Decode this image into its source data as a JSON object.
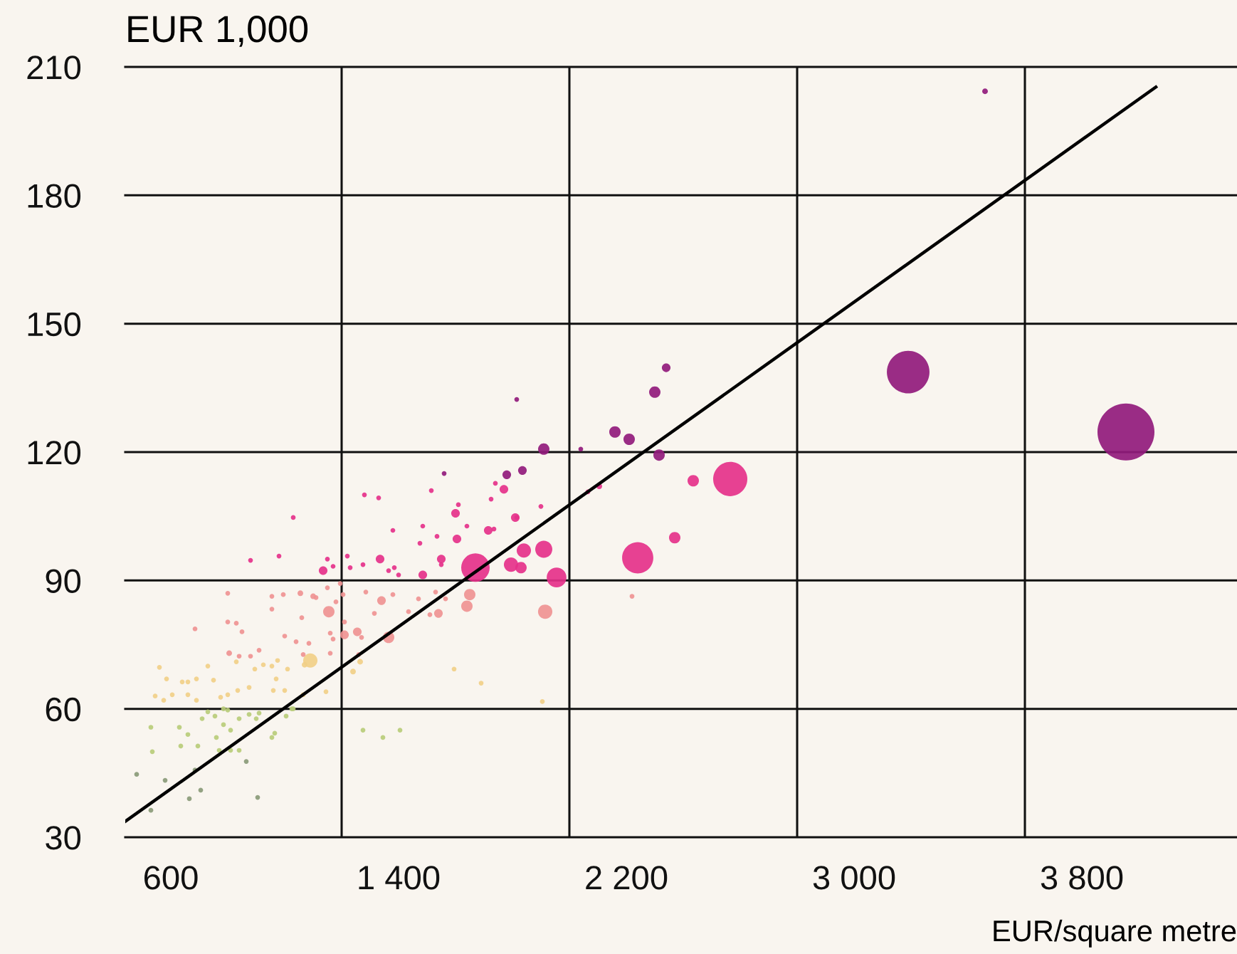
{
  "chart_data": {
    "type": "bubble",
    "xlabel": "EUR/square metre",
    "ylabel": "EUR 1,000",
    "xlim": [
      440,
      4345
    ],
    "ylim": [
      30,
      210
    ],
    "xticks": [
      600,
      {
        "value": 1200,
        "label": null
      },
      {
        "value": 1400,
        "label": "1 400"
      },
      {
        "value": 2000,
        "label": null
      },
      {
        "value": 2200,
        "label": "2 200"
      },
      {
        "value": 2800,
        "label": null
      },
      {
        "value": 3000,
        "label": "3 000"
      },
      {
        "value": 3600,
        "label": null
      },
      {
        "value": 3800,
        "label": "3 800"
      }
    ],
    "yticks": [
      30,
      60,
      90,
      120,
      150,
      180,
      210
    ],
    "grid": true,
    "series": [
      {
        "color": "#8a9a78",
        "x": [
          480,
          530,
          580,
          665,
          705,
          685,
          865,
          905
        ],
        "values": [
          44.7,
          36.3,
          43.3,
          39,
          41,
          45.7,
          47.7,
          39.3
        ],
        "sizes": [
          0.007,
          0.007,
          0.007,
          0.007,
          0.007,
          0.007,
          0.007,
          0.007
        ]
      },
      {
        "color": "#b8cc7a",
        "x": [
          530,
          535,
          635,
          630,
          660,
          695,
          710,
          755,
          760,
          785,
          800,
          810,
          770,
          810,
          840,
          840,
          875,
          910,
          900,
          965,
          955,
          1005,
          1025,
          730,
          785,
          1275,
          1345,
          1405,
          1030
        ],
        "values": [
          55.7,
          50,
          51.3,
          55.7,
          54,
          51.3,
          57.7,
          58.3,
          53.3,
          56.3,
          59.7,
          55,
          50.3,
          50.3,
          50.3,
          57.7,
          58.7,
          59,
          57.7,
          54.3,
          53.3,
          58.3,
          60,
          59.3,
          60,
          55,
          53.3,
          55,
          60
        ],
        "sizes": [
          0.007,
          0.007,
          0.007,
          0.007,
          0.007,
          0.007,
          0.007,
          0.007,
          0.007,
          0.007,
          0.007,
          0.007,
          0.007,
          0.007,
          0.007,
          0.007,
          0.007,
          0.007,
          0.007,
          0.007,
          0.007,
          0.007,
          0.007,
          0.007,
          0.007,
          0.007,
          0.007,
          0.007,
          0.007
        ]
      },
      {
        "color": "#f1cf88",
        "x": [
          560,
          585,
          545,
          575,
          605,
          640,
          660,
          690,
          660,
          690,
          730,
          750,
          775,
          800,
          830,
          835,
          875,
          895,
          925,
          955,
          960,
          970,
          975,
          1010,
          1000,
          1065,
          1090,
          1070,
          1145,
          1240,
          1265,
          1595,
          1690,
          1905
        ],
        "values": [
          69.7,
          67,
          63,
          62,
          63.3,
          66.3,
          66.3,
          67,
          63.3,
          62,
          70,
          66.7,
          62.7,
          63.3,
          71,
          64.3,
          65,
          69.3,
          70.3,
          70,
          64.3,
          67,
          71.3,
          69.3,
          64.3,
          63.3,
          71.3,
          70.3,
          64,
          68.7,
          71,
          69.3,
          66,
          61.7
        ],
        "sizes": [
          0.007,
          0.007,
          0.007,
          0.007,
          0.007,
          0.007,
          0.007,
          0.007,
          0.007,
          0.007,
          0.007,
          0.007,
          0.007,
          0.007,
          0.007,
          0.007,
          0.007,
          0.007,
          0.007,
          0.007,
          0.007,
          0.007,
          0.007,
          0.007,
          0.007,
          0.007,
          0.063,
          0.01,
          0.007,
          0.01,
          0.01,
          0.007,
          0.007,
          0.007
        ]
      },
      {
        "color": "#ef9393",
        "x": [
          800,
          685,
          800,
          830,
          850,
          805,
          840,
          880,
          910,
          955,
          955,
          995,
          1000,
          1055,
          1060,
          1040,
          1085,
          1065,
          1100,
          1155,
          1160,
          1180,
          1195,
          1160,
          1210,
          1150,
          1110,
          1205,
          1285,
          1340,
          1315,
          1380,
          1435,
          1470,
          1530,
          1565,
          1540,
          1510,
          1650,
          1640,
          1255,
          1365,
          1270,
          1260,
          1170,
          1210,
          1915,
          2220
        ],
        "values": [
          87,
          78.7,
          80.3,
          80,
          78,
          73,
          72.3,
          72.3,
          73.7,
          86.3,
          83.3,
          86.7,
          77,
          87,
          81.3,
          75.7,
          75.3,
          72.7,
          86.3,
          82.7,
          77.7,
          85,
          89.3,
          73,
          77.3,
          88.3,
          86,
          86.7,
          87.3,
          85.3,
          82.3,
          86.7,
          82.7,
          85.7,
          87.3,
          85.7,
          82.3,
          82,
          86.7,
          84,
          78,
          76.7,
          76.7,
          72.7,
          76.3,
          80.3,
          82.7,
          86.3
        ],
        "sizes": [
          0.007,
          0.007,
          0.007,
          0.007,
          0.007,
          0.01,
          0.007,
          0.007,
          0.007,
          0.007,
          0.007,
          0.007,
          0.007,
          0.01,
          0.007,
          0.007,
          0.007,
          0.007,
          0.01,
          0.04,
          0.007,
          0.007,
          0.007,
          0.007,
          0.023,
          0.007,
          0.007,
          0.007,
          0.007,
          0.023,
          0.007,
          0.007,
          0.007,
          0.007,
          0.007,
          0.007,
          0.023,
          0.007,
          0.04,
          0.04,
          0.023,
          0.04,
          0.007,
          0.007,
          0.007,
          0.007,
          0.063,
          0.007
        ]
      },
      {
        "color": "#e5318a",
        "x": [
          880,
          980,
          1135,
          1150,
          1170,
          1220,
          1230,
          1030,
          1280,
          1330,
          1380,
          1485,
          1475,
          1535,
          1515,
          1600,
          1610,
          1640,
          1605,
          1725,
          1740,
          1770,
          1715,
          1735,
          1810,
          1335,
          1275,
          1365,
          1385,
          1400,
          1485,
          1550,
          1550,
          1670,
          1795,
          1830,
          1910,
          1840,
          1955,
          1815,
          1900,
          2065,
          2105,
          2435,
          2565,
          2370,
          2240
        ],
        "values": [
          94.7,
          95.7,
          92.3,
          95,
          93.3,
          95.7,
          93,
          104.7,
          110,
          109.3,
          101.7,
          102.7,
          98.7,
          100.3,
          111,
          105.7,
          107.7,
          102.7,
          99.7,
          109,
          112.7,
          111.3,
          101.7,
          102,
          104.7,
          95,
          93.7,
          92.3,
          93,
          91.3,
          91.3,
          95,
          93.7,
          93,
          93.7,
          93,
          97.3,
          97,
          90.7,
          104.7,
          107.3,
          110.7,
          112,
          113.3,
          113.7,
          100,
          95.3
        ],
        "sizes": [
          0.007,
          0.007,
          0.023,
          0.007,
          0.007,
          0.007,
          0.007,
          0.007,
          0.007,
          0.007,
          0.007,
          0.007,
          0.007,
          0.007,
          0.007,
          0.023,
          0.007,
          0.007,
          0.023,
          0.007,
          0.007,
          0.023,
          0.023,
          0.007,
          0.023,
          0.023,
          0.007,
          0.007,
          0.007,
          0.007,
          0.023,
          0.023,
          0.007,
          0.25,
          0.063,
          0.04,
          0.09,
          0.063,
          0.12,
          0.007,
          0.007,
          0.007,
          0.01,
          0.04,
          0.36,
          0.04,
          0.3
        ]
      },
      {
        "color": "#911a7c",
        "x": [
          1560,
          1780,
          1835,
          1815,
          1910,
          2040,
          2160,
          2210,
          2315,
          2300,
          2340,
          3190,
          3955,
          3460
        ],
        "values": [
          115,
          114.7,
          115.7,
          132.3,
          120.7,
          120.7,
          124.7,
          123,
          119.3,
          134,
          139.7,
          138.7,
          124.7,
          204.3
        ],
        "sizes": [
          0.007,
          0.023,
          0.023,
          0.007,
          0.04,
          0.007,
          0.04,
          0.04,
          0.04,
          0.04,
          0.023,
          0.56,
          1,
          0.01
        ]
      },
      {
        "type": "line",
        "color": "#000000",
        "x": [
          440,
          4060
        ],
        "values": [
          33.7,
          205.3
        ]
      }
    ]
  }
}
